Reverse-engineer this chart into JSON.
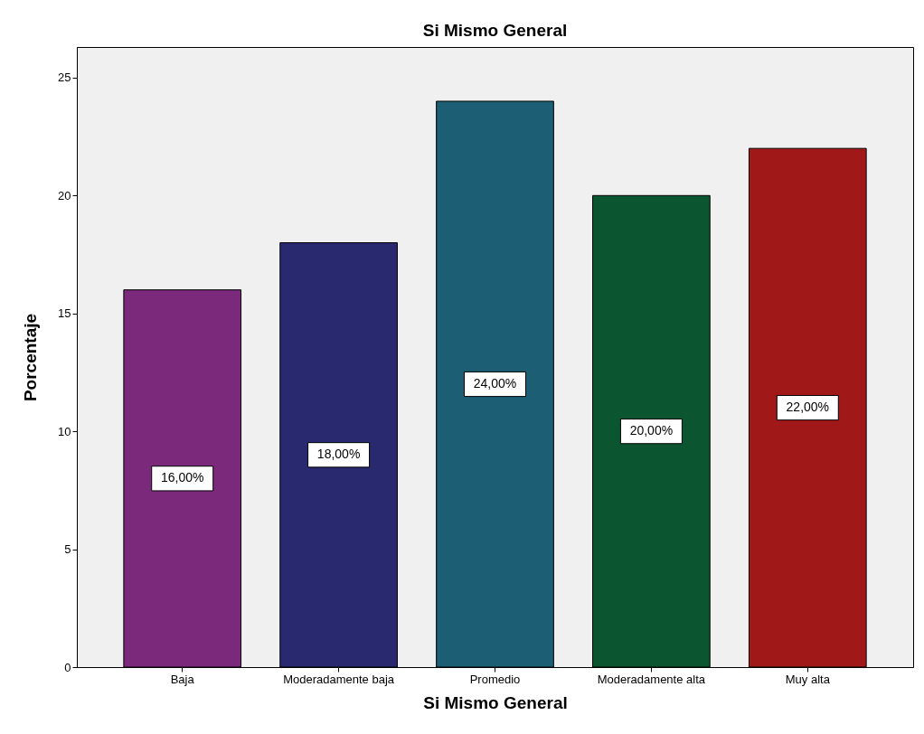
{
  "chart_data": {
    "type": "bar",
    "title": "Si Mismo General",
    "xlabel": "Si Mismo General",
    "ylabel": "Porcentaje",
    "categories": [
      "Baja",
      "Moderadamente baja",
      "Promedio",
      "Moderadamente alta",
      "Muy alta"
    ],
    "values": [
      16,
      18,
      24,
      20,
      22
    ],
    "colors": [
      "#7b2a7b",
      "#29296f",
      "#1c5e74",
      "#0b5530",
      "#a11818"
    ],
    "value_labels": [
      "16,00%",
      "18,00%",
      "24,00%",
      "20,00%",
      "22,00%"
    ],
    "ylim": [
      0,
      26.3
    ],
    "yticks": [
      0,
      5,
      10,
      15,
      20,
      25
    ],
    "grid": false
  }
}
